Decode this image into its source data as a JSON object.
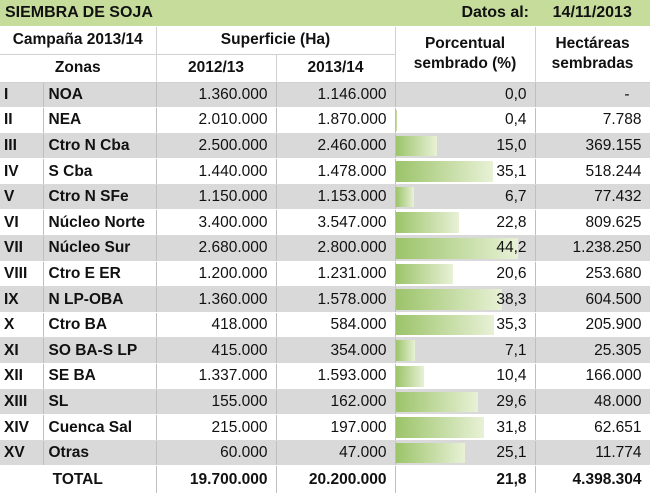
{
  "title": "SIEMBRA DE SOJA",
  "date_label": "Datos al:",
  "date_value": "14/11/2013",
  "header": {
    "campaign": "Campaña 2013/14",
    "zones": "Zonas",
    "surface": "Superficie (Ha)",
    "year_prev": "2012/13",
    "year_curr": "2013/14",
    "percent_line1": "Porcentual",
    "percent_line2": "sembrado (%)",
    "hectares_line1": "Hectáreas",
    "hectares_line2": "sembradas"
  },
  "rows": [
    {
      "roman": "I",
      "zone": "NOA",
      "s2012": "1.360.000",
      "s2013": "1.146.000",
      "pct": "0,0",
      "pct_value": 0.0,
      "ha": "-"
    },
    {
      "roman": "II",
      "zone": "NEA",
      "s2012": "2.010.000",
      "s2013": "1.870.000",
      "pct": "0,4",
      "pct_value": 0.4,
      "ha": "7.788"
    },
    {
      "roman": "III",
      "zone": "Ctro N Cba",
      "s2012": "2.500.000",
      "s2013": "2.460.000",
      "pct": "15,0",
      "pct_value": 15.0,
      "ha": "369.155"
    },
    {
      "roman": "IV",
      "zone": "S Cba",
      "s2012": "1.440.000",
      "s2013": "1.478.000",
      "pct": "35,1",
      "pct_value": 35.1,
      "ha": "518.244"
    },
    {
      "roman": "V",
      "zone": "Ctro N SFe",
      "s2012": "1.150.000",
      "s2013": "1.153.000",
      "pct": "6,7",
      "pct_value": 6.7,
      "ha": "77.432"
    },
    {
      "roman": "VI",
      "zone": "Núcleo Norte",
      "s2012": "3.400.000",
      "s2013": "3.547.000",
      "pct": "22,8",
      "pct_value": 22.8,
      "ha": "809.625"
    },
    {
      "roman": "VII",
      "zone": "Núcleo Sur",
      "s2012": "2.680.000",
      "s2013": "2.800.000",
      "pct": "44,2",
      "pct_value": 44.2,
      "ha": "1.238.250"
    },
    {
      "roman": "VIII",
      "zone": "Ctro E ER",
      "s2012": "1.200.000",
      "s2013": "1.231.000",
      "pct": "20,6",
      "pct_value": 20.6,
      "ha": "253.680"
    },
    {
      "roman": "IX",
      "zone": "N LP-OBA",
      "s2012": "1.360.000",
      "s2013": "1.578.000",
      "pct": "38,3",
      "pct_value": 38.3,
      "ha": "604.500"
    },
    {
      "roman": "X",
      "zone": "Ctro BA",
      "s2012": "418.000",
      "s2013": "584.000",
      "pct": "35,3",
      "pct_value": 35.3,
      "ha": "205.900"
    },
    {
      "roman": "XI",
      "zone": "SO BA-S LP",
      "s2012": "415.000",
      "s2013": "354.000",
      "pct": "7,1",
      "pct_value": 7.1,
      "ha": "25.305"
    },
    {
      "roman": "XII",
      "zone": "SE BA",
      "s2012": "1.337.000",
      "s2013": "1.593.000",
      "pct": "10,4",
      "pct_value": 10.4,
      "ha": "166.000"
    },
    {
      "roman": "XIII",
      "zone": "SL",
      "s2012": "155.000",
      "s2013": "162.000",
      "pct": "29,6",
      "pct_value": 29.6,
      "ha": "48.000"
    },
    {
      "roman": "XIV",
      "zone": "Cuenca Sal",
      "s2012": "215.000",
      "s2013": "197.000",
      "pct": "31,8",
      "pct_value": 31.8,
      "ha": "62.651"
    },
    {
      "roman": "XV",
      "zone": "Otras",
      "s2012": "60.000",
      "s2013": "47.000",
      "pct": "25,1",
      "pct_value": 25.1,
      "ha": "11.774"
    }
  ],
  "total": {
    "label": "TOTAL",
    "s2012": "19.700.000",
    "s2013": "20.200.000",
    "pct": "21,8",
    "ha": "4.398.304"
  },
  "colors": {
    "title_bg": "#c6dc9a",
    "row_grey": "#d9d9d9",
    "bar_dark": "#9cc46a",
    "bar_light": "#e8f1d6"
  }
}
